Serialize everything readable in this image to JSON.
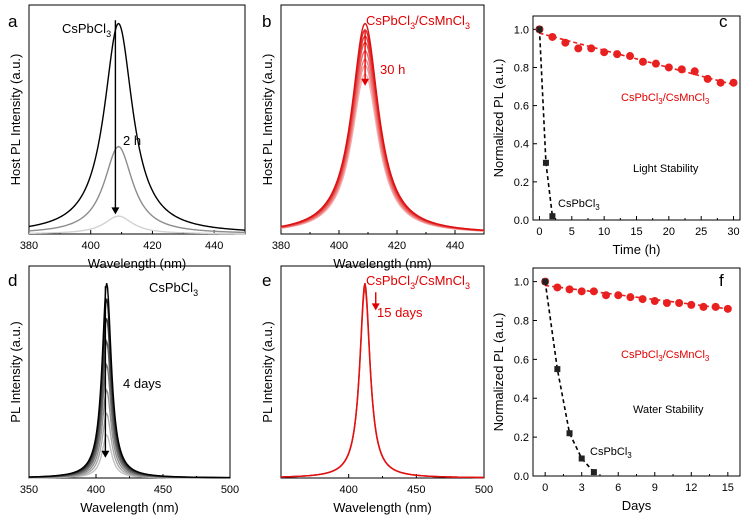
{
  "chart_data": [
    {
      "panel": "a",
      "type": "line",
      "xlabel": "Wavelength (nm)",
      "ylabel": "Host PL Intensity (a.u.)",
      "xlim": [
        380,
        450
      ],
      "ylim": [
        0,
        1.05
      ],
      "xticks": [
        380,
        400,
        420,
        440
      ],
      "peak": 409,
      "width": 5.6,
      "curves": [
        {
          "amp": 1.0,
          "color": "#000000"
        },
        {
          "amp": 0.415,
          "color": "#8c8c8c"
        },
        {
          "amp": 0.085,
          "color": "#d2d2d2"
        }
      ],
      "arrow": {
        "x": 408,
        "y1": 0.98,
        "y2": 0.09,
        "color": "#000000"
      },
      "labels": {
        "sample": "CsPbCl",
        "sample_sub": "3",
        "time": "2 h"
      }
    },
    {
      "panel": "b",
      "type": "line",
      "xlabel": "Wavelength (nm)",
      "ylabel": "Host PL Intensity (a.u.)",
      "xlim": [
        380,
        450
      ],
      "ylim": [
        0,
        1.05
      ],
      "xticks": [
        380,
        400,
        420,
        440
      ],
      "peak": 409,
      "width": 5.6,
      "curves": [
        {
          "amp": 1.0,
          "color": "#dd1111"
        },
        {
          "amp": 0.97,
          "color": "#e02222"
        },
        {
          "amp": 0.94,
          "color": "#e33a3a"
        },
        {
          "amp": 0.91,
          "color": "#e65050"
        },
        {
          "amp": 0.87,
          "color": "#ea6868"
        },
        {
          "amp": 0.83,
          "color": "#ee8080"
        },
        {
          "amp": 0.8,
          "color": "#f29999"
        },
        {
          "amp": 0.76,
          "color": "#f6b4b4"
        }
      ],
      "arrow": {
        "x": 409,
        "y1": 0.93,
        "y2": 0.68,
        "color": "#e00000"
      },
      "labels": {
        "sample_pre": "CsPbCl",
        "sample_sub1": "3",
        "sample_mid": "/CsMnCl",
        "sample_sub2": "3",
        "time": "30 h"
      }
    },
    {
      "panel": "c",
      "type": "scatter",
      "xlabel": "Time (h)",
      "ylabel": "Normalized PL (a.u.)",
      "xlim": [
        -1,
        31
      ],
      "ylim": [
        0,
        1.07
      ],
      "xticks": [
        0,
        5,
        10,
        15,
        20,
        25,
        30
      ],
      "yticks": [
        0.0,
        0.2,
        0.4,
        0.6,
        0.8,
        1.0
      ],
      "series": [
        {
          "name": "CsPbCl3/CsMnCl3",
          "color": "#e82020",
          "marker": "circle",
          "x": [
            0,
            2,
            4,
            6,
            8,
            10,
            12,
            14,
            16,
            18,
            20,
            22,
            24,
            26,
            28,
            30
          ],
          "y": [
            1.0,
            0.96,
            0.93,
            0.9,
            0.9,
            0.88,
            0.87,
            0.86,
            0.83,
            0.82,
            0.8,
            0.79,
            0.78,
            0.74,
            0.72,
            0.72
          ],
          "fit": [
            [
              0,
              0.98
            ],
            [
              30,
              0.71
            ]
          ]
        },
        {
          "name": "CsPbCl3",
          "color": "#222222",
          "marker": "square",
          "x": [
            0,
            1,
            2
          ],
          "y": [
            1.0,
            0.3,
            0.02
          ]
        }
      ],
      "labels": {
        "red_pre": "CsPbCl",
        "red_sub1": "3",
        "red_mid": "/CsMnCl",
        "red_sub2": "3",
        "black_pre": "CsPbCl",
        "black_sub": "3",
        "title": "Light Stability"
      }
    },
    {
      "panel": "d",
      "type": "line",
      "xlabel": "Wavelength (nm)",
      "ylabel": "PL Intensity (a.u.)",
      "xlim": [
        350,
        500
      ],
      "ylim": [
        0,
        1.05
      ],
      "xticks": [
        350,
        400,
        450,
        500
      ],
      "peak": 408,
      "width": 4.2,
      "curves": [
        {
          "amp": 1.0,
          "color": "#000000"
        },
        {
          "amp": 0.92,
          "color": "#202020"
        },
        {
          "amp": 0.82,
          "color": "#404040"
        },
        {
          "amp": 0.7,
          "color": "#5a5a5a"
        },
        {
          "amp": 0.58,
          "color": "#747474"
        },
        {
          "amp": 0.45,
          "color": "#8e8e8e"
        },
        {
          "amp": 0.33,
          "color": "#a8a8a8"
        },
        {
          "amp": 0.22,
          "color": "#c0c0c0"
        }
      ],
      "arrow": {
        "x": 407,
        "y1": 0.95,
        "y2": 0.1,
        "color": "#000000"
      },
      "labels": {
        "sample": "CsPbCl",
        "sample_sub": "3",
        "time": "4 days"
      }
    },
    {
      "panel": "e",
      "type": "line",
      "xlabel": "Wavelength (nm)",
      "ylabel": "PL Intensity (a.u.)",
      "xlim": [
        350,
        500
      ],
      "ylim": [
        0,
        1.05
      ],
      "xticks": [
        400,
        450,
        500
      ],
      "peak": 412,
      "width": 4.6,
      "curves": [
        {
          "amp": 1.0,
          "color": "#e01010"
        },
        {
          "amp": 0.985,
          "color": "#e53030"
        },
        {
          "amp": 0.97,
          "color": "#ea5050"
        }
      ],
      "arrow": {
        "x": 420,
        "y1": 0.92,
        "y2": 0.83,
        "color": "#e00000"
      },
      "labels": {
        "sample_pre": "CsPbCl",
        "sample_sub1": "3",
        "sample_mid": "/CsMnCl",
        "sample_sub2": "3",
        "time": "15 days"
      }
    },
    {
      "panel": "f",
      "type": "scatter",
      "xlabel": "Days",
      "ylabel": "Normalized PL (a.u.)",
      "xlim": [
        -1,
        16
      ],
      "ylim": [
        0,
        1.07
      ],
      "xticks": [
        0,
        3,
        6,
        9,
        12,
        15
      ],
      "yticks": [
        0.0,
        0.2,
        0.4,
        0.6,
        0.8,
        1.0
      ],
      "series": [
        {
          "name": "CsPbCl3/CsMnCl3",
          "color": "#e82020",
          "marker": "circle",
          "x": [
            0,
            1,
            2,
            3,
            4,
            5,
            6,
            7,
            8,
            9,
            10,
            11,
            12,
            13,
            14,
            15
          ],
          "y": [
            1.0,
            0.97,
            0.96,
            0.95,
            0.95,
            0.93,
            0.93,
            0.92,
            0.91,
            0.9,
            0.89,
            0.89,
            0.88,
            0.87,
            0.87,
            0.86
          ],
          "fit": [
            [
              0,
              0.98
            ],
            [
              15,
              0.86
            ]
          ]
        },
        {
          "name": "CsPbCl3",
          "color": "#222222",
          "marker": "square",
          "x": [
            0,
            1,
            2,
            3,
            4
          ],
          "y": [
            1.0,
            0.55,
            0.22,
            0.09,
            0.02
          ]
        }
      ],
      "labels": {
        "red_pre": "CsPbCl",
        "red_sub1": "3",
        "red_mid": "/CsMnCl",
        "red_sub2": "3",
        "black_pre": "CsPbCl",
        "black_sub": "3",
        "title": "Water Stability"
      }
    }
  ]
}
